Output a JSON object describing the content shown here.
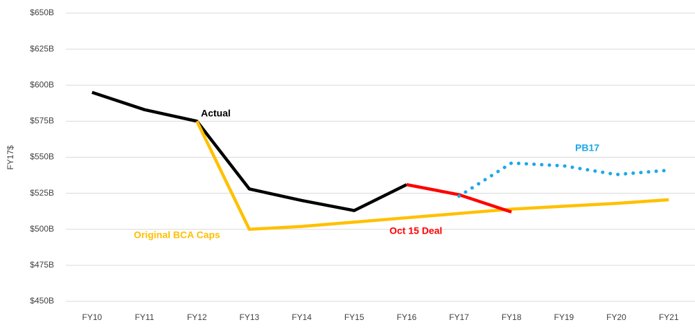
{
  "chart_data": {
    "type": "line",
    "ylabel": "FY17$",
    "categories": [
      "FY10",
      "FY11",
      "FY12",
      "FY13",
      "FY14",
      "FY15",
      "FY16",
      "FY17",
      "FY18",
      "FY19",
      "FY20",
      "FY21"
    ],
    "series": [
      {
        "name": "Actual",
        "color": "#000000",
        "values": [
          595,
          583,
          575,
          528,
          520,
          513,
          531,
          null,
          null,
          null,
          null,
          null
        ]
      },
      {
        "name": "Original BCA Caps",
        "color": "#FFC000",
        "values": [
          null,
          null,
          575,
          500,
          502,
          505,
          508,
          511,
          514,
          516,
          518,
          520.5
        ]
      },
      {
        "name": "Oct 15 Deal",
        "color": "#FF0000",
        "values": [
          null,
          null,
          null,
          null,
          null,
          null,
          531,
          524,
          512,
          null,
          null,
          null
        ]
      },
      {
        "name": "PB17",
        "color": "#1CA9E6",
        "dashed": true,
        "values": [
          null,
          null,
          null,
          null,
          null,
          null,
          null,
          523,
          546,
          544,
          538,
          541
        ]
      }
    ],
    "ylim": [
      450,
      650
    ],
    "yticks": [
      {
        "value": 450,
        "label": "$450B"
      },
      {
        "value": 475,
        "label": "$475B"
      },
      {
        "value": 500,
        "label": "$500B"
      },
      {
        "value": 525,
        "label": "$525B"
      },
      {
        "value": 550,
        "label": "$550B"
      },
      {
        "value": 575,
        "label": "$575B"
      },
      {
        "value": 600,
        "label": "$600B"
      },
      {
        "value": 625,
        "label": "$625B"
      },
      {
        "value": 650,
        "label": "$650B"
      }
    ],
    "grid": true
  }
}
